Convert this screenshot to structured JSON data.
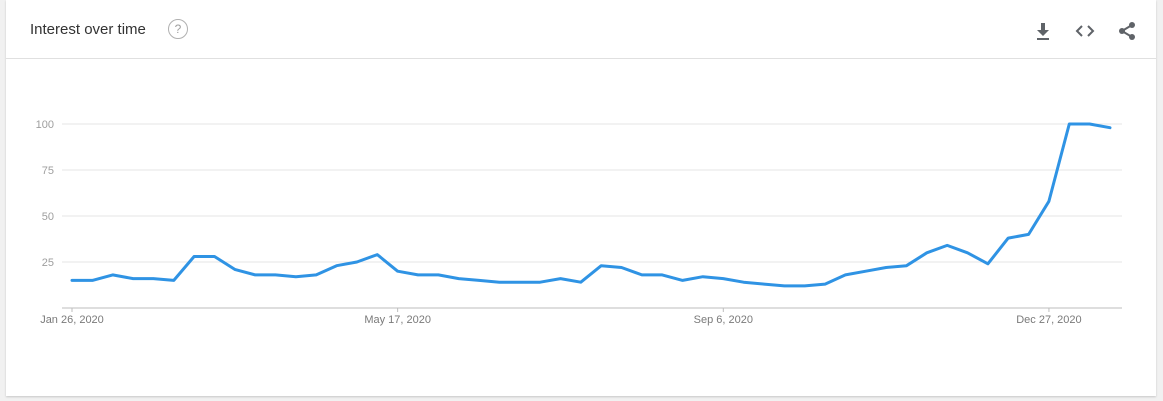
{
  "header": {
    "title": "Interest over time",
    "help_icon": "help-circle-icon",
    "help_glyph": "?",
    "actions": [
      {
        "name": "download-icon"
      },
      {
        "name": "embed-icon"
      },
      {
        "name": "share-icon"
      }
    ]
  },
  "colors": {
    "line": "#2f93e4",
    "grid": "#e5e5e5",
    "tick_text": "#9e9e9e",
    "icon": "#5f6368"
  },
  "chart_data": {
    "type": "line",
    "title": "",
    "xlabel": "",
    "ylabel": "",
    "ylim": [
      0,
      100
    ],
    "yticks": [
      25,
      50,
      75,
      100
    ],
    "xtick_labels": [
      "Jan 26, 2020",
      "May 17, 2020",
      "Sep 6, 2020",
      "Dec 27, 2020"
    ],
    "xtick_indices": [
      0,
      16,
      32,
      48
    ],
    "grid": true,
    "legend": "none",
    "x": [
      "Jan 26, 2020",
      "Feb 2, 2020",
      "Feb 9, 2020",
      "Feb 16, 2020",
      "Feb 23, 2020",
      "Mar 1, 2020",
      "Mar 8, 2020",
      "Mar 15, 2020",
      "Mar 22, 2020",
      "Mar 29, 2020",
      "Apr 5, 2020",
      "Apr 12, 2020",
      "Apr 19, 2020",
      "Apr 26, 2020",
      "May 3, 2020",
      "May 10, 2020",
      "May 17, 2020",
      "May 24, 2020",
      "May 31, 2020",
      "Jun 7, 2020",
      "Jun 14, 2020",
      "Jun 21, 2020",
      "Jun 28, 2020",
      "Jul 5, 2020",
      "Jul 12, 2020",
      "Jul 19, 2020",
      "Jul 26, 2020",
      "Aug 2, 2020",
      "Aug 9, 2020",
      "Aug 16, 2020",
      "Aug 23, 2020",
      "Aug 30, 2020",
      "Sep 6, 2020",
      "Sep 13, 2020",
      "Sep 20, 2020",
      "Sep 27, 2020",
      "Oct 4, 2020",
      "Oct 11, 2020",
      "Oct 18, 2020",
      "Oct 25, 2020",
      "Nov 1, 2020",
      "Nov 8, 2020",
      "Nov 15, 2020",
      "Nov 22, 2020",
      "Nov 29, 2020",
      "Dec 6, 2020",
      "Dec 13, 2020",
      "Dec 20, 2020",
      "Dec 27, 2020",
      "Jan 3, 2021",
      "Jan 10, 2021",
      "Jan 17, 2021"
    ],
    "series": [
      {
        "values": [
          15,
          15,
          18,
          16,
          16,
          15,
          28,
          28,
          21,
          18,
          18,
          17,
          18,
          23,
          25,
          29,
          20,
          18,
          18,
          16,
          15,
          14,
          14,
          14,
          16,
          14,
          23,
          22,
          18,
          18,
          15,
          17,
          16,
          14,
          13,
          12,
          12,
          13,
          18,
          20,
          22,
          23,
          30,
          34,
          30,
          24,
          38,
          40,
          58,
          100,
          100,
          98
        ]
      }
    ]
  }
}
